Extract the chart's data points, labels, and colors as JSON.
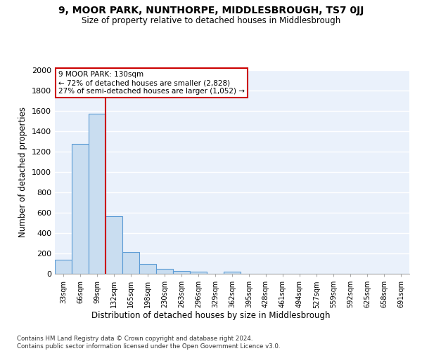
{
  "title": "9, MOOR PARK, NUNTHORPE, MIDDLESBROUGH, TS7 0JJ",
  "subtitle": "Size of property relative to detached houses in Middlesbrough",
  "xlabel": "Distribution of detached houses by size in Middlesbrough",
  "ylabel": "Number of detached properties",
  "footnote": "Contains HM Land Registry data © Crown copyright and database right 2024.\nContains public sector information licensed under the Open Government Licence v3.0.",
  "annotation_title": "9 MOOR PARK: 130sqm",
  "annotation_line1": "← 72% of detached houses are smaller (2,828)",
  "annotation_line2": "27% of semi-detached houses are larger (1,052) →",
  "bar_color": "#c9ddf0",
  "bar_edge_color": "#5b9bd5",
  "redline_color": "#cc0000",
  "background_color": "#ffffff",
  "plot_bg_color": "#eaf1fb",
  "grid_color": "#ffffff",
  "categories": [
    "33sqm",
    "66sqm",
    "99sqm",
    "132sqm",
    "165sqm",
    "198sqm",
    "230sqm",
    "263sqm",
    "296sqm",
    "329sqm",
    "362sqm",
    "395sqm",
    "428sqm",
    "461sqm",
    "494sqm",
    "527sqm",
    "559sqm",
    "592sqm",
    "625sqm",
    "658sqm",
    "691sqm"
  ],
  "values": [
    137,
    1275,
    1570,
    565,
    215,
    98,
    50,
    25,
    20,
    0,
    20,
    0,
    0,
    0,
    0,
    0,
    0,
    0,
    0,
    0,
    0
  ],
  "ylim": [
    0,
    2000
  ],
  "yticks": [
    0,
    200,
    400,
    600,
    800,
    1000,
    1200,
    1400,
    1600,
    1800,
    2000
  ],
  "annotation_box_color": "#ffffff",
  "annotation_box_edge": "#cc0000"
}
